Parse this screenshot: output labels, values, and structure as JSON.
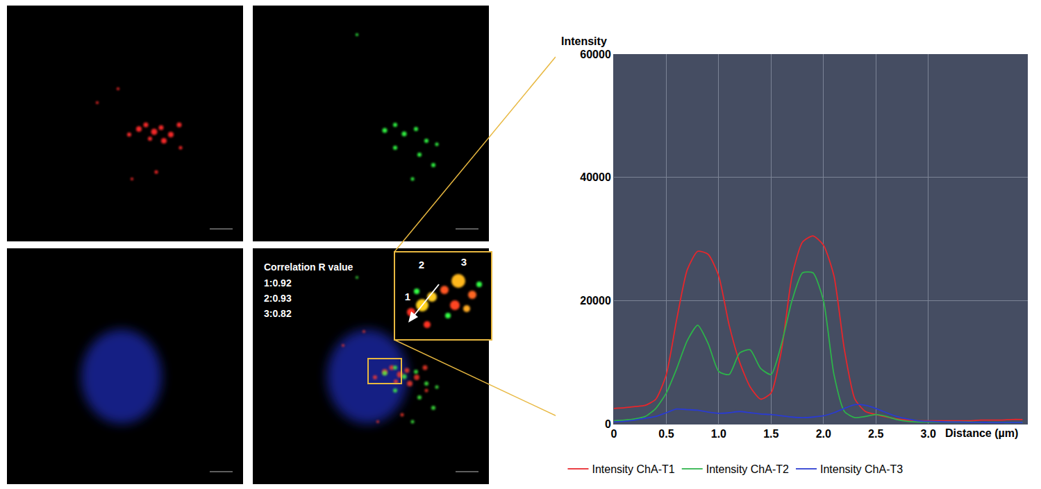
{
  "chart_data": {
    "type": "line",
    "x_label": "Distance (µm)",
    "y_label": "Intensity",
    "x": [
      0,
      0.1,
      0.2,
      0.3,
      0.4,
      0.5,
      0.6,
      0.7,
      0.8,
      0.9,
      1.0,
      1.1,
      1.2,
      1.3,
      1.4,
      1.5,
      1.6,
      1.7,
      1.8,
      1.9,
      2.0,
      2.1,
      2.2,
      2.3,
      2.4,
      2.5,
      2.6,
      2.7,
      2.8,
      2.9,
      3.0,
      3.1,
      3.2,
      3.3,
      3.4,
      3.5,
      3.6,
      3.7,
      3.8,
      3.9
    ],
    "series": [
      {
        "name": "Intensity ChA-T1",
        "color": "#e8262b",
        "values": [
          2500,
          2600,
          2800,
          3000,
          4000,
          8000,
          17000,
          25000,
          28000,
          27500,
          24000,
          16000,
          10000,
          6000,
          4000,
          5000,
          12000,
          24000,
          29500,
          30500,
          29000,
          24000,
          12000,
          4000,
          2000,
          1500,
          1100,
          800,
          600,
          500,
          500,
          500,
          500,
          500,
          500,
          600,
          600,
          600,
          700,
          700
        ]
      },
      {
        "name": "Intensity ChA-T2",
        "color": "#2db34a",
        "values": [
          500,
          600,
          800,
          1200,
          2500,
          5000,
          9000,
          13500,
          16000,
          13000,
          8500,
          8000,
          11500,
          12000,
          9000,
          8000,
          13000,
          20000,
          24500,
          24500,
          20000,
          8000,
          2000,
          1000,
          1200,
          1500,
          1200,
          700,
          400,
          300,
          300,
          300,
          300,
          300,
          300,
          250,
          250,
          200,
          200,
          200
        ]
      },
      {
        "name": "Intensity ChA-T3",
        "color": "#2a3bd1",
        "values": [
          300,
          400,
          600,
          900,
          1200,
          1800,
          2400,
          2300,
          2200,
          1900,
          1700,
          1800,
          2000,
          1800,
          1600,
          1500,
          1300,
          1100,
          1000,
          1100,
          1300,
          1800,
          2500,
          3100,
          3000,
          2500,
          1800,
          1200,
          800,
          500,
          400,
          350,
          300,
          300,
          250,
          250,
          200,
          200,
          200,
          200
        ]
      }
    ],
    "xlim": [
      0,
      3.95
    ],
    "xticks": [
      0,
      0.5,
      {
        "value": 1,
        "label": "1.0"
      },
      1.5,
      {
        "value": 2,
        "label": "2.0"
      },
      2.5,
      {
        "value": 3,
        "label": "3.0"
      }
    ],
    "ylim": [
      0,
      60000
    ],
    "yticks": [
      0,
      20000,
      40000,
      60000
    ],
    "grid": true,
    "legend": "bottom"
  },
  "merge_panel": {
    "correlation_title": "Correlation R value",
    "correlations": [
      "1:0.92",
      "2:0.93",
      "3:0.82"
    ],
    "inset_labels": [
      "1",
      "2",
      "3"
    ]
  }
}
